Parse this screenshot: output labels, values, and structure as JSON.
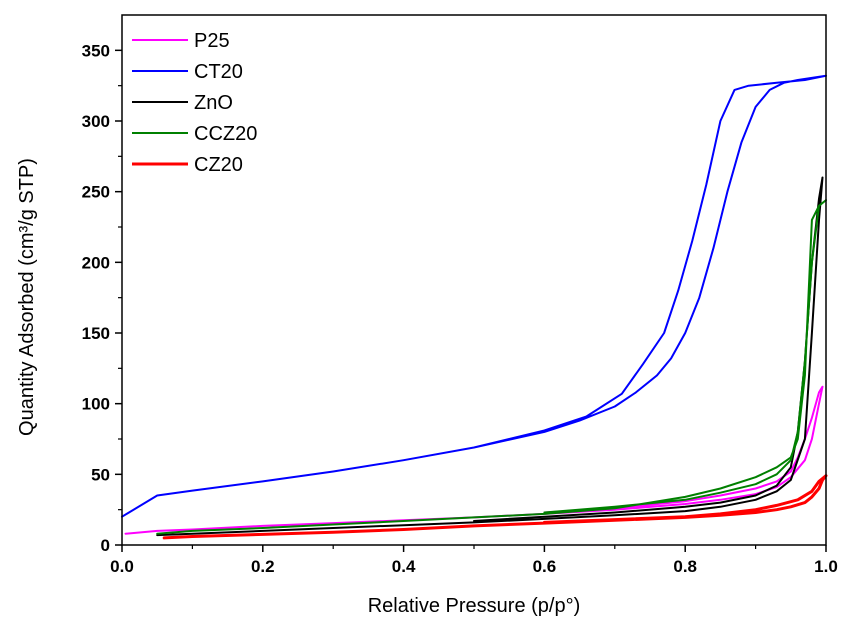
{
  "chart_data": {
    "type": "line",
    "title": "",
    "xlabel": "Relative Pressure (p/p°)",
    "ylabel": "Quantity Adsorbed (cm³/g STP)",
    "xlim": [
      0.0,
      1.0
    ],
    "ylim": [
      0,
      375
    ],
    "x_ticks": [
      "0.0",
      "0.2",
      "0.4",
      "0.6",
      "0.8",
      "1.0"
    ],
    "y_ticks": [
      "0",
      "50",
      "100",
      "150",
      "200",
      "250",
      "300",
      "350"
    ],
    "grid": false,
    "legend_position": "top-left",
    "series": [
      {
        "name": "P25",
        "color": "#ff00ff",
        "x": [
          0.005,
          0.05,
          0.1,
          0.2,
          0.3,
          0.4,
          0.5,
          0.6,
          0.7,
          0.8,
          0.85,
          0.9,
          0.93,
          0.95,
          0.97,
          0.98,
          0.99,
          0.995,
          0.99,
          0.98,
          0.97,
          0.96,
          0.95,
          0.93,
          0.9,
          0.85,
          0.8,
          0.7,
          0.6
        ],
        "y": [
          8,
          10,
          11,
          13.5,
          15.5,
          17.5,
          19.5,
          22,
          25,
          29,
          32,
          36,
          41,
          48,
          60,
          75,
          100,
          112,
          108,
          90,
          75,
          62,
          52,
          45,
          40,
          35,
          31,
          26,
          23
        ]
      },
      {
        "name": "CT20",
        "color": "#0000ff",
        "x": [
          0.0,
          0.05,
          0.1,
          0.2,
          0.3,
          0.4,
          0.5,
          0.6,
          0.65,
          0.7,
          0.73,
          0.76,
          0.78,
          0.8,
          0.82,
          0.84,
          0.86,
          0.88,
          0.9,
          0.92,
          0.94,
          0.96,
          1.0,
          0.97,
          0.93,
          0.89,
          0.87,
          0.85,
          0.83,
          0.81,
          0.79,
          0.77,
          0.74,
          0.71,
          0.66,
          0.6,
          0.5,
          0.4,
          0.3,
          0.2,
          0.1
        ],
        "y": [
          20,
          35,
          38.5,
          45,
          52,
          60,
          69,
          80,
          88,
          98,
          108,
          120,
          132,
          150,
          175,
          210,
          250,
          285,
          310,
          322,
          327,
          329,
          332,
          329,
          327,
          325,
          322,
          300,
          255,
          215,
          180,
          150,
          128,
          107,
          91,
          81,
          69,
          60,
          52,
          45,
          38.5
        ]
      },
      {
        "name": "ZnO",
        "color": "#000000",
        "x": [
          0.05,
          0.1,
          0.2,
          0.3,
          0.4,
          0.5,
          0.6,
          0.7,
          0.8,
          0.85,
          0.9,
          0.93,
          0.95,
          0.97,
          0.98,
          0.99,
          0.995,
          0.99,
          0.98,
          0.97,
          0.96,
          0.95,
          0.93,
          0.9,
          0.85,
          0.8,
          0.7,
          0.6,
          0.5
        ],
        "y": [
          7,
          8,
          10,
          12,
          14,
          16,
          18.5,
          21,
          24,
          27,
          32,
          38,
          46,
          75,
          150,
          230,
          260,
          245,
          200,
          130,
          80,
          55,
          42,
          35,
          30,
          27,
          23,
          20,
          17
        ]
      },
      {
        "name": "CCZ20",
        "color": "#008000",
        "x": [
          0.05,
          0.1,
          0.2,
          0.3,
          0.4,
          0.5,
          0.6,
          0.7,
          0.75,
          0.8,
          0.85,
          0.9,
          0.93,
          0.95,
          0.96,
          0.97,
          0.98,
          0.99,
          1.0,
          0.99,
          0.98,
          0.97,
          0.96,
          0.95,
          0.93,
          0.9,
          0.85,
          0.8,
          0.7,
          0.6
        ],
        "y": [
          8,
          10,
          12,
          14.5,
          17,
          19.5,
          22,
          26,
          30,
          34,
          40,
          48,
          55,
          62,
          75,
          120,
          230,
          240,
          244,
          240,
          200,
          130,
          80,
          60,
          50,
          43,
          37,
          32,
          27,
          23
        ]
      },
      {
        "name": "CZ20",
        "color": "#ff0000",
        "x": [
          0.06,
          0.1,
          0.2,
          0.3,
          0.4,
          0.5,
          0.6,
          0.7,
          0.8,
          0.85,
          0.9,
          0.93,
          0.95,
          0.97,
          0.98,
          0.99,
          0.995,
          1.0,
          0.99,
          0.98,
          0.96,
          0.93,
          0.9,
          0.85,
          0.8,
          0.7,
          0.6
        ],
        "y": [
          5,
          6,
          7.5,
          9,
          11,
          13.5,
          15.5,
          17.5,
          19.5,
          21,
          23,
          25,
          27,
          30,
          34,
          40,
          46,
          49,
          45,
          38,
          32,
          28,
          25,
          22,
          20,
          18,
          16
        ]
      }
    ]
  }
}
